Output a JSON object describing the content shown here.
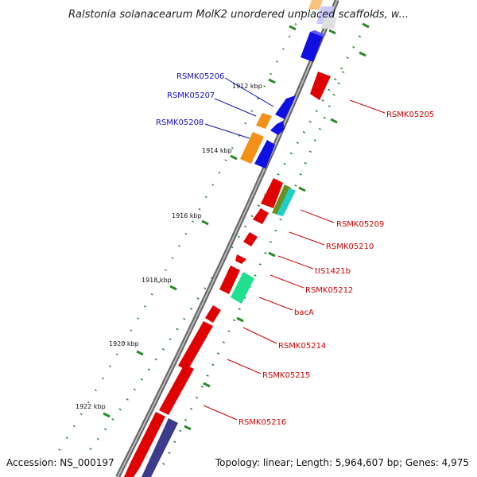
{
  "title": "Ralstonia solanacearum MolK2 unordered unplaced scaffolds, w...",
  "footer": {
    "accession": "Accession: NS_000197",
    "summary": "Topology: linear; Length: 5,964,607 bp; Genes: 4,975"
  },
  "kbp_labels": [
    "1912 kbp",
    "1914 kbp",
    "1916 kbp",
    "1918 kbp",
    "1920 kbp",
    "1922 kbp"
  ],
  "gene_labels_left": [
    "RSMK05206",
    "RSMK05207",
    "RSMK05208"
  ],
  "gene_labels_right": [
    "RSMK05205",
    "RSMK05209",
    "RSMK05210",
    "tIS1421b",
    "RSMK05212",
    "bacA",
    "RSMK05214",
    "RSMK05215",
    "RSMK05216"
  ],
  "colors": {
    "plus_strand_gene": "#1010e0",
    "minus_strand_gene": "#e00000",
    "orange_feature": "#f29018",
    "teal_feature": "#20d0c8",
    "olive_feature": "#6b8f1f",
    "green_feature": "#20e090",
    "navy_feature": "#3c3c8c",
    "gc_skew_dots": "#2a8a2a",
    "backbone": "#888888",
    "label_left": "#1010c0",
    "label_right": "#d00000"
  }
}
